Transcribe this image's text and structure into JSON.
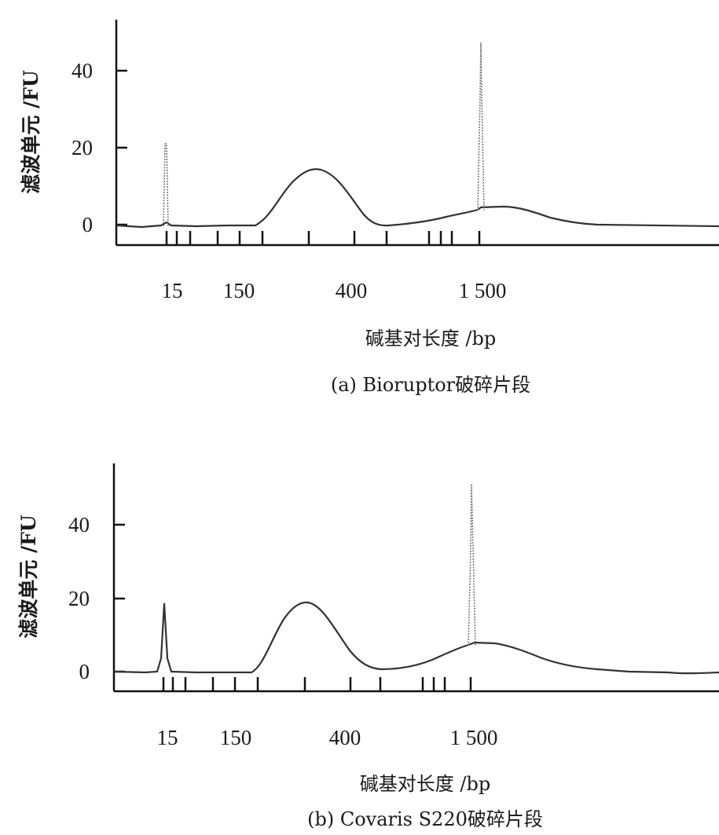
{
  "chart_data": [
    {
      "type": "line",
      "caption": "(a) Bioruptor破碎片段",
      "xlabel": "碱基对长度 /bp",
      "ylabel": "滤波单元 /FU",
      "yticks": [
        0,
        20,
        40
      ],
      "ylim": [
        -5,
        55
      ],
      "xtick_labels": [
        "15",
        "150",
        "400",
        "1 500"
      ],
      "peaks": [
        {
          "label": "15",
          "height": 21
        },
        {
          "label": "broad",
          "height": 15
        },
        {
          "label": "1 500",
          "height": 48
        }
      ]
    },
    {
      "type": "line",
      "caption": "(b) Covaris S220破碎片段",
      "xlabel": "碱基对长度 /bp",
      "ylabel": "滤波单元 /FU",
      "yticks": [
        0,
        20,
        40
      ],
      "ylim": [
        -5,
        55
      ],
      "xtick_labels": [
        "15",
        "150",
        "400",
        "1 500"
      ],
      "peaks": [
        {
          "label": "15",
          "height": 19
        },
        {
          "label": "broad",
          "height": 19
        },
        {
          "label": "1 500",
          "height": 50
        }
      ]
    }
  ]
}
